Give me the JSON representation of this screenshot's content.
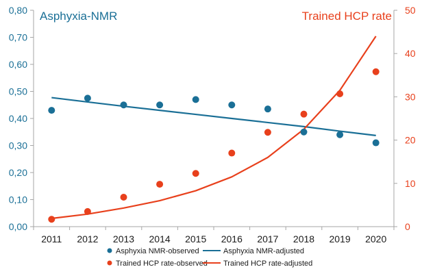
{
  "chart_data": {
    "type": "line",
    "title_left": "Asphyxia-NMR",
    "title_right": "Trained HCP rate",
    "x": [
      2011,
      2012,
      2013,
      2014,
      2015,
      2016,
      2017,
      2018,
      2019,
      2020
    ],
    "y_left": {
      "range": [
        0,
        0.8
      ],
      "ticks": [
        "0,00",
        "0,10",
        "0,20",
        "0,30",
        "0,40",
        "0,50",
        "0,60",
        "0,70",
        "0,80"
      ],
      "color": "#1a6f96"
    },
    "y_right": {
      "range": [
        0,
        50
      ],
      "ticks": [
        "0",
        "10",
        "20",
        "30",
        "40",
        "50"
      ],
      "color": "#e8401c"
    },
    "series": [
      {
        "name": "Asphyxia NMR-observed",
        "axis": "left",
        "kind": "points",
        "color": "#1a6f96",
        "values": [
          0.43,
          0.475,
          0.45,
          0.45,
          0.47,
          0.45,
          0.435,
          0.35,
          0.34,
          0.31
        ]
      },
      {
        "name": "Asphyxia NMR-adjusted",
        "axis": "left",
        "kind": "line",
        "color": "#1a6f96",
        "values": [
          0.477,
          0.461,
          0.445,
          0.43,
          0.415,
          0.4,
          0.385,
          0.37,
          0.353,
          0.337
        ]
      },
      {
        "name": "Trained HCP rate-observed",
        "axis": "right",
        "kind": "points",
        "color": "#e8401c",
        "values": [
          1.7,
          3.5,
          6.8,
          9.8,
          12.3,
          17.0,
          21.8,
          26.0,
          30.7,
          35.8
        ]
      },
      {
        "name": "Trained HCP rate-adjusted",
        "axis": "right",
        "kind": "line",
        "color": "#e8401c",
        "values": [
          1.9,
          2.9,
          4.3,
          6.0,
          8.3,
          11.5,
          16.0,
          22.5,
          31.5,
          44.0
        ]
      }
    ],
    "legend_position": "bottom",
    "grid": false
  }
}
